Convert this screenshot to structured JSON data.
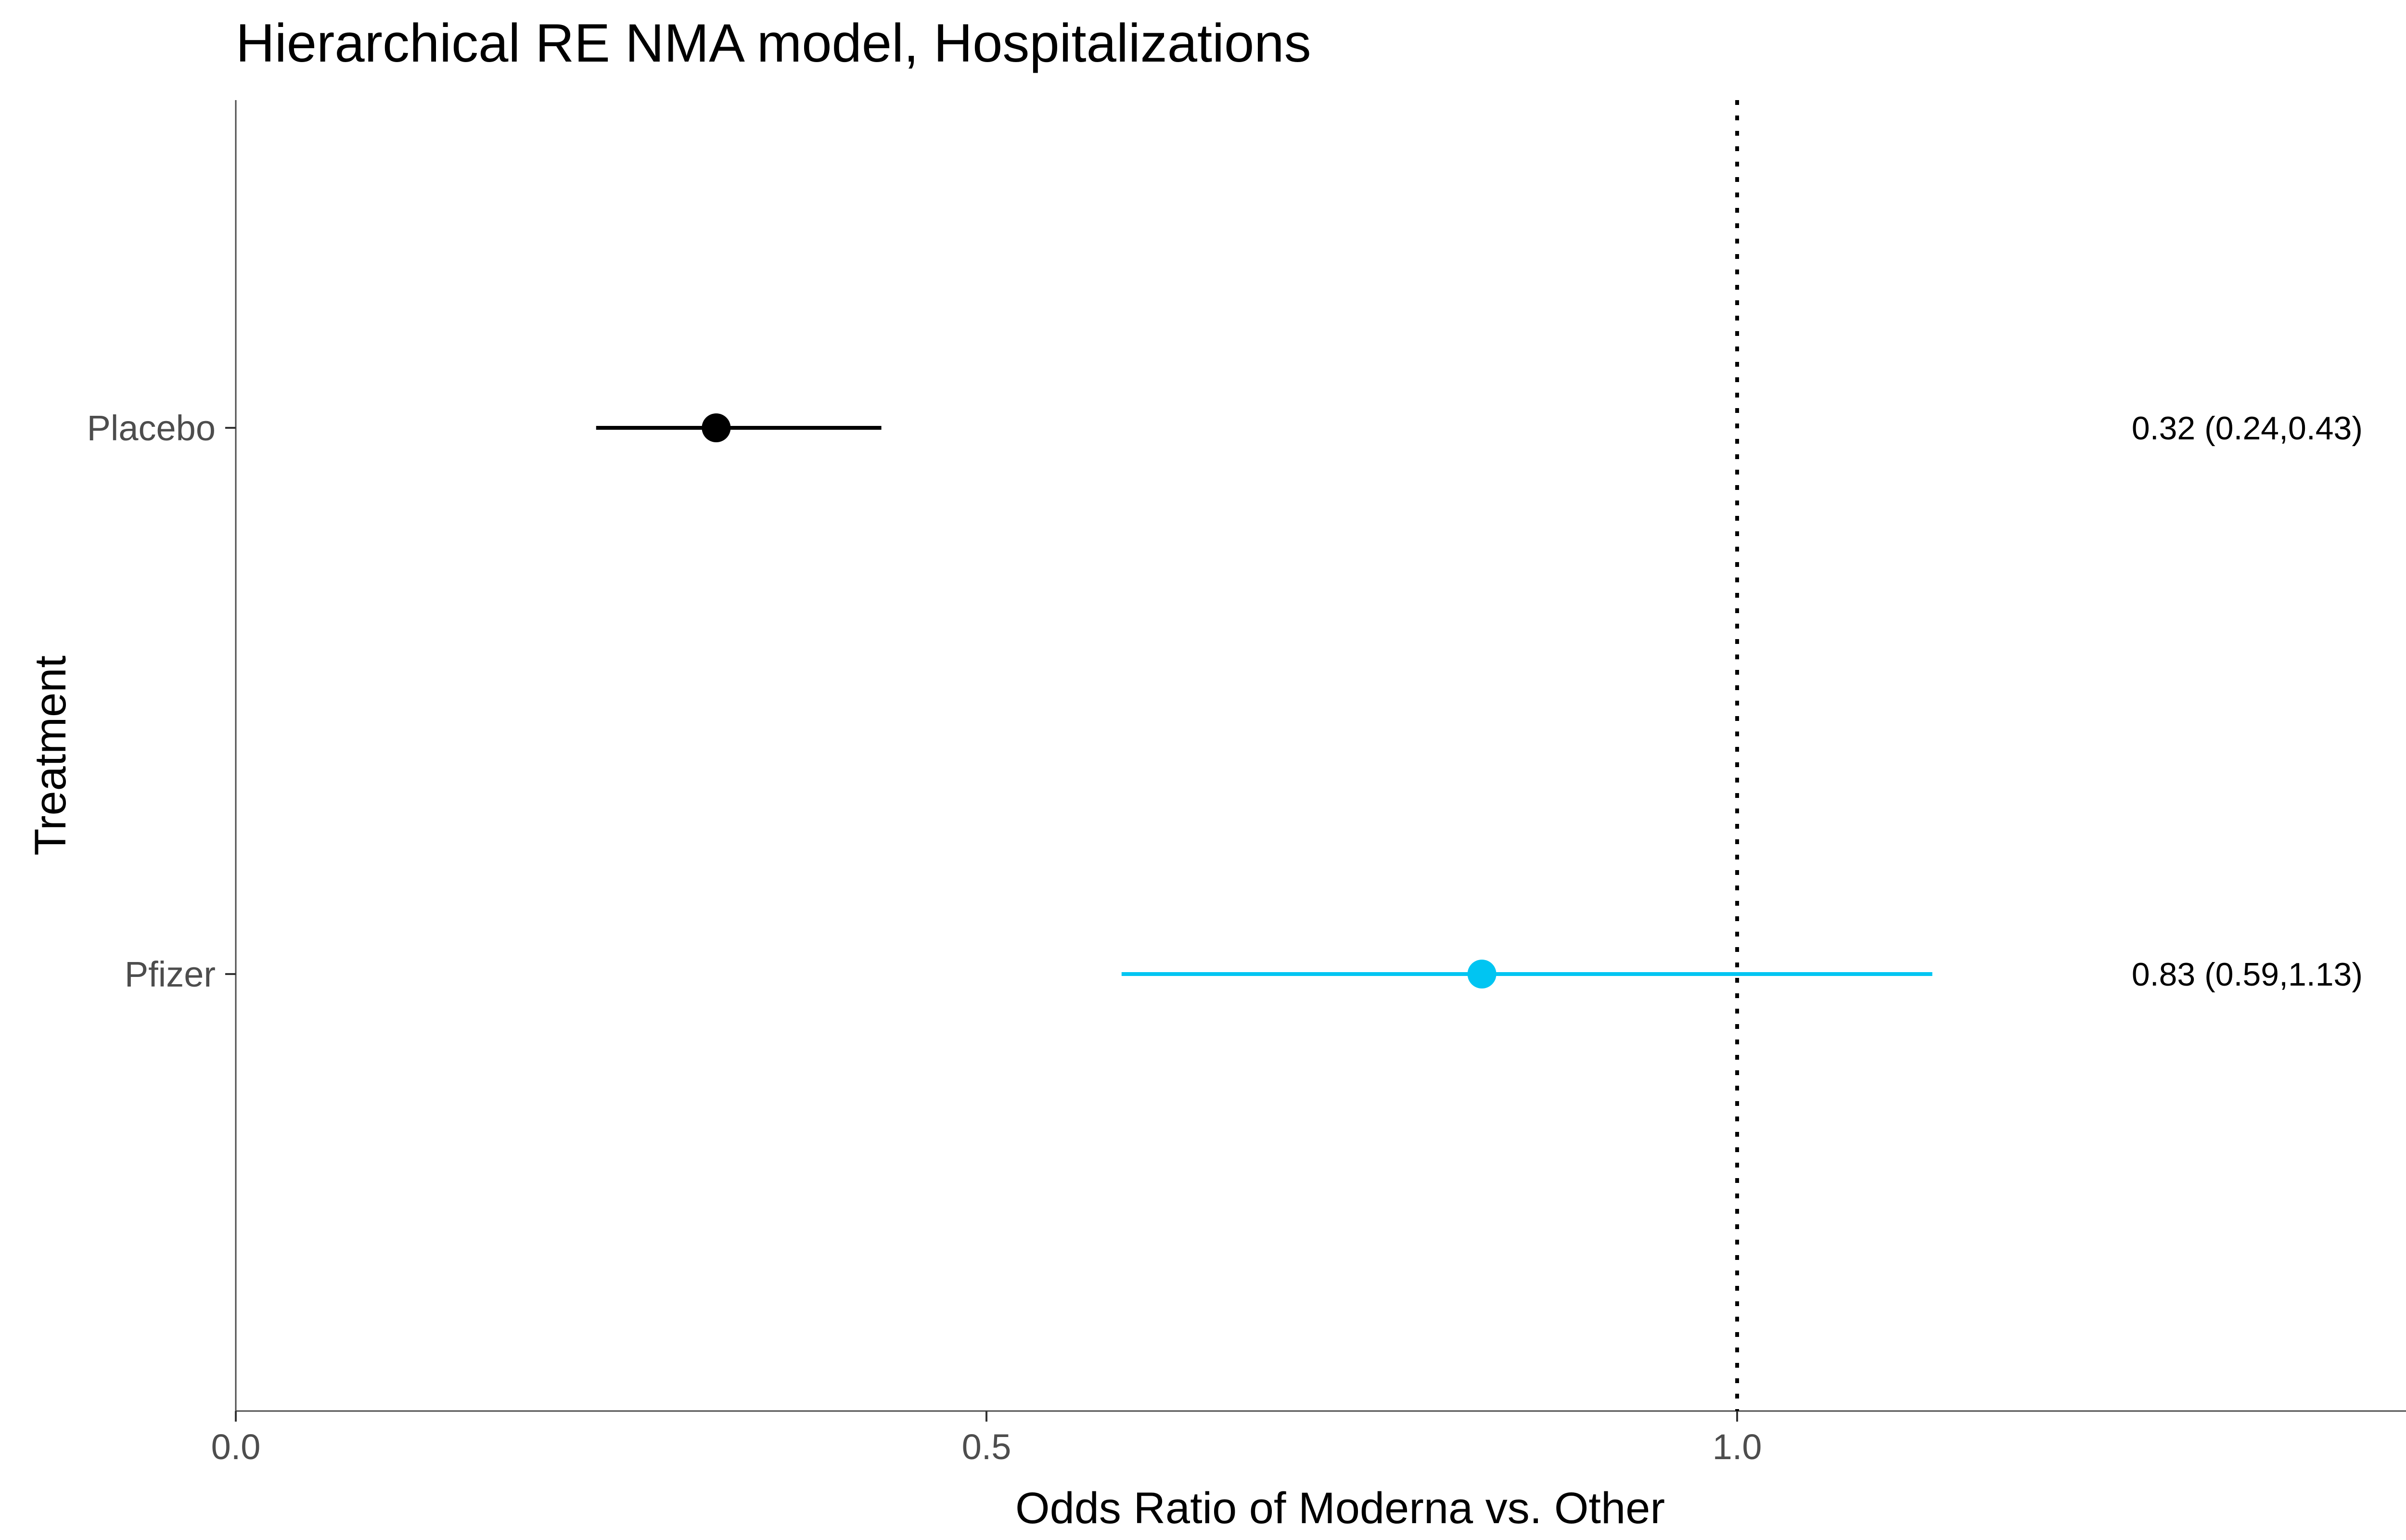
{
  "chart_data": {
    "type": "forest",
    "title": "Hierarchical RE NMA model, Hospitalizations",
    "xlabel": "Odds Ratio of Moderna vs. Other",
    "ylabel": "Treatment",
    "xlim": [
      0,
      1.47
    ],
    "x_ticks": [
      0.0,
      0.5,
      1.0
    ],
    "x_tick_labels": [
      "0.0",
      "0.5",
      "1.0"
    ],
    "reference_line": 1.0,
    "grid": false,
    "categories": [
      "Placebo",
      "Pfizer"
    ],
    "series": [
      {
        "values": [
          {
            "category": "Placebo",
            "estimate": 0.32,
            "lower": 0.24,
            "upper": 0.43,
            "label": "0.32 (0.24,0.43)",
            "color": "#000000"
          },
          {
            "category": "Pfizer",
            "estimate": 0.83,
            "lower": 0.59,
            "upper": 1.13,
            "label": "0.83 (0.59,1.13)",
            "color": "#00c5f2"
          }
        ]
      }
    ]
  }
}
